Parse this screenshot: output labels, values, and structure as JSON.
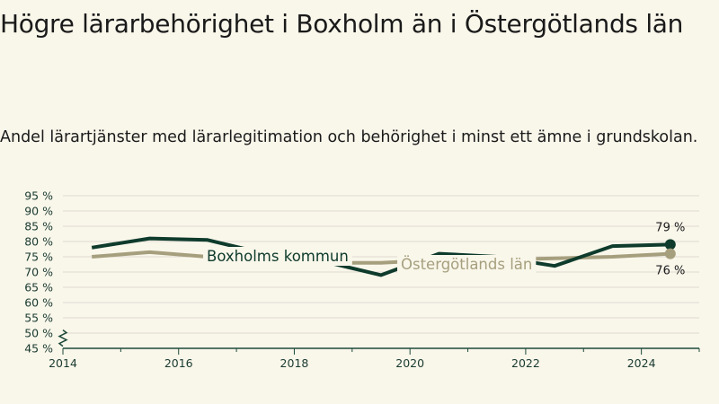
{
  "header": {
    "title": "Högre lärarbehörighet i Boxholm än i Östergötlands län",
    "subtitle": "Andel lärartjänster med lärarlegitimation och behörighet i minst ett ämne i grundskolan."
  },
  "colors": {
    "background": "#f9f6ea",
    "boxholm": "#0e3b2c",
    "ostergotland": "#a69f7e",
    "axis": "#1e4a3a",
    "grid": "#dedbd1"
  },
  "chart_data": {
    "type": "line",
    "y_ticks": [
      "95 %",
      "90 %",
      "85 %",
      "80 %",
      "75 %",
      "70 %",
      "65 %",
      "60 %",
      "55 %",
      "50 %",
      "45 %"
    ],
    "x_ticks": [
      "2014",
      "2016",
      "2018",
      "2020",
      "2022",
      "2024"
    ],
    "ylim": [
      45,
      95
    ],
    "xlim": [
      2014,
      2025
    ],
    "y_axis_break": true,
    "grid": true,
    "series": [
      {
        "name": "Boxholms kommun",
        "color": "#0e3b2c",
        "x": [
          2014.5,
          2015.5,
          2016.5,
          2017.5,
          2018.5,
          2019.5,
          2020.5,
          2021.5,
          2022.5,
          2023.5,
          2024.5
        ],
        "y": [
          78,
          81,
          80.5,
          76,
          73.5,
          69,
          76,
          75,
          72,
          78.5,
          79
        ],
        "end_label": "79 %"
      },
      {
        "name": "Östergötlands län",
        "color": "#a69f7e",
        "x": [
          2014.5,
          2015.5,
          2016.5,
          2017.5,
          2018.5,
          2019.5,
          2020.5,
          2021.5,
          2022.5,
          2023.5,
          2024.5
        ],
        "y": [
          75,
          76.5,
          75,
          74,
          73,
          73,
          74,
          74,
          74.5,
          75,
          76
        ],
        "end_label": "76 %"
      }
    ]
  }
}
